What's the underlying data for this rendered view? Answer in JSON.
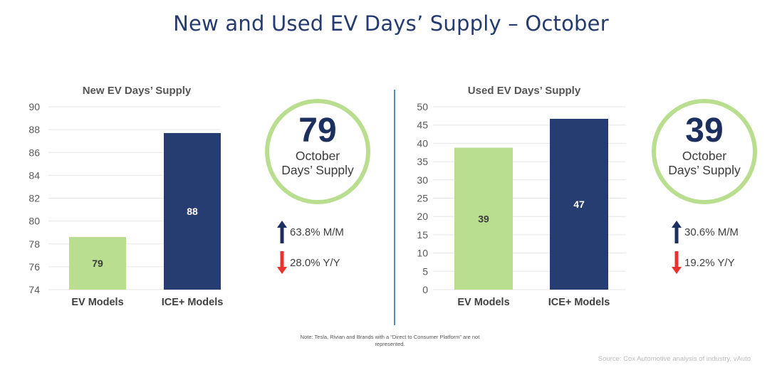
{
  "title": "New and Used EV Days’ Supply – October",
  "colors": {
    "ev": "#b9de8f",
    "ice": "#253d70",
    "title": "#233b6e",
    "up_arrow": "#1d2f5e",
    "down_arrow": "#e8322b",
    "divider": "#4a90c2"
  },
  "chart_data": [
    {
      "type": "bar",
      "title": "New EV Days’ Supply",
      "categories": [
        "EV Models",
        "ICE+ Models"
      ],
      "values": [
        78.6,
        87.7
      ],
      "data_labels": [
        "79",
        "88"
      ],
      "ylim": [
        74,
        90
      ],
      "yticks": [
        74,
        76,
        78,
        80,
        82,
        84,
        86,
        88,
        90
      ],
      "grid": true,
      "xlabel": "",
      "ylabel": ""
    },
    {
      "type": "bar",
      "title": "Used EV Days’ Supply",
      "categories": [
        "EV Models",
        "ICE+ Models"
      ],
      "values": [
        38.8,
        46.7
      ],
      "data_labels": [
        "39",
        "47"
      ],
      "ylim": [
        0,
        50
      ],
      "yticks": [
        0,
        5,
        10,
        15,
        20,
        25,
        30,
        35,
        40,
        45,
        50
      ],
      "grid": true,
      "xlabel": "",
      "ylabel": ""
    }
  ],
  "kpis": [
    {
      "value": "79",
      "line1": "October",
      "line2": "Days’ Supply",
      "mm": "63.8% M/M",
      "mm_direction": "up",
      "yy": "28.0% Y/Y",
      "yy_direction": "down"
    },
    {
      "value": "39",
      "line1": "October",
      "line2": "Days’ Supply",
      "mm": "30.6% M/M",
      "mm_direction": "up",
      "yy": "19.2% Y/Y",
      "yy_direction": "down"
    }
  ],
  "note": "Note: Tesla, Rivian and Brands with a “Direct to Consumer Platform” are not represented.",
  "source": "Source: Cox Automotive analysis of industry, vAuto"
}
